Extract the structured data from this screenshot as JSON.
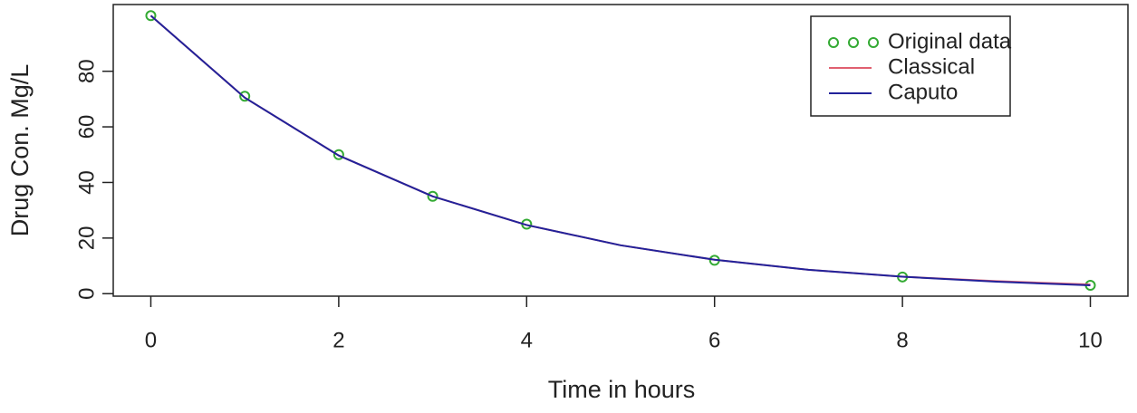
{
  "chart_data": {
    "type": "line",
    "x_label": "Time in hours",
    "y_label": "Drug Con. Mg/L",
    "series": [
      {
        "name": "Original data",
        "color": "#33aa33",
        "style": "points",
        "x": [
          0,
          1,
          2,
          3,
          4,
          6,
          8,
          10
        ],
        "values": [
          100,
          71,
          50,
          35,
          25,
          12,
          6,
          3
        ]
      },
      {
        "name": "Classical",
        "color": "#e06070",
        "style": "line",
        "x": [
          0,
          1,
          2,
          3,
          4,
          5,
          6,
          7,
          8,
          9,
          10
        ],
        "values": [
          100,
          70.5,
          49.7,
          35,
          24.7,
          17.4,
          12.2,
          8.6,
          6.1,
          4.5,
          3.3
        ]
      },
      {
        "name": "Caputo",
        "color": "#22229a",
        "style": "line",
        "x": [
          0,
          1,
          2,
          3,
          4,
          5,
          6,
          7,
          8,
          9,
          10
        ],
        "values": [
          100,
          70.5,
          49.7,
          35,
          24.7,
          17.4,
          12.2,
          8.6,
          6.1,
          4.3,
          3
        ]
      }
    ],
    "xlim": [
      -0.4,
      10.4
    ],
    "ylim": [
      -0.9,
      104
    ],
    "xticks": [
      0,
      2,
      4,
      6,
      8,
      10
    ],
    "yticks": [
      0,
      20,
      40,
      60,
      80
    ],
    "grid": false,
    "legend": "top-right"
  }
}
